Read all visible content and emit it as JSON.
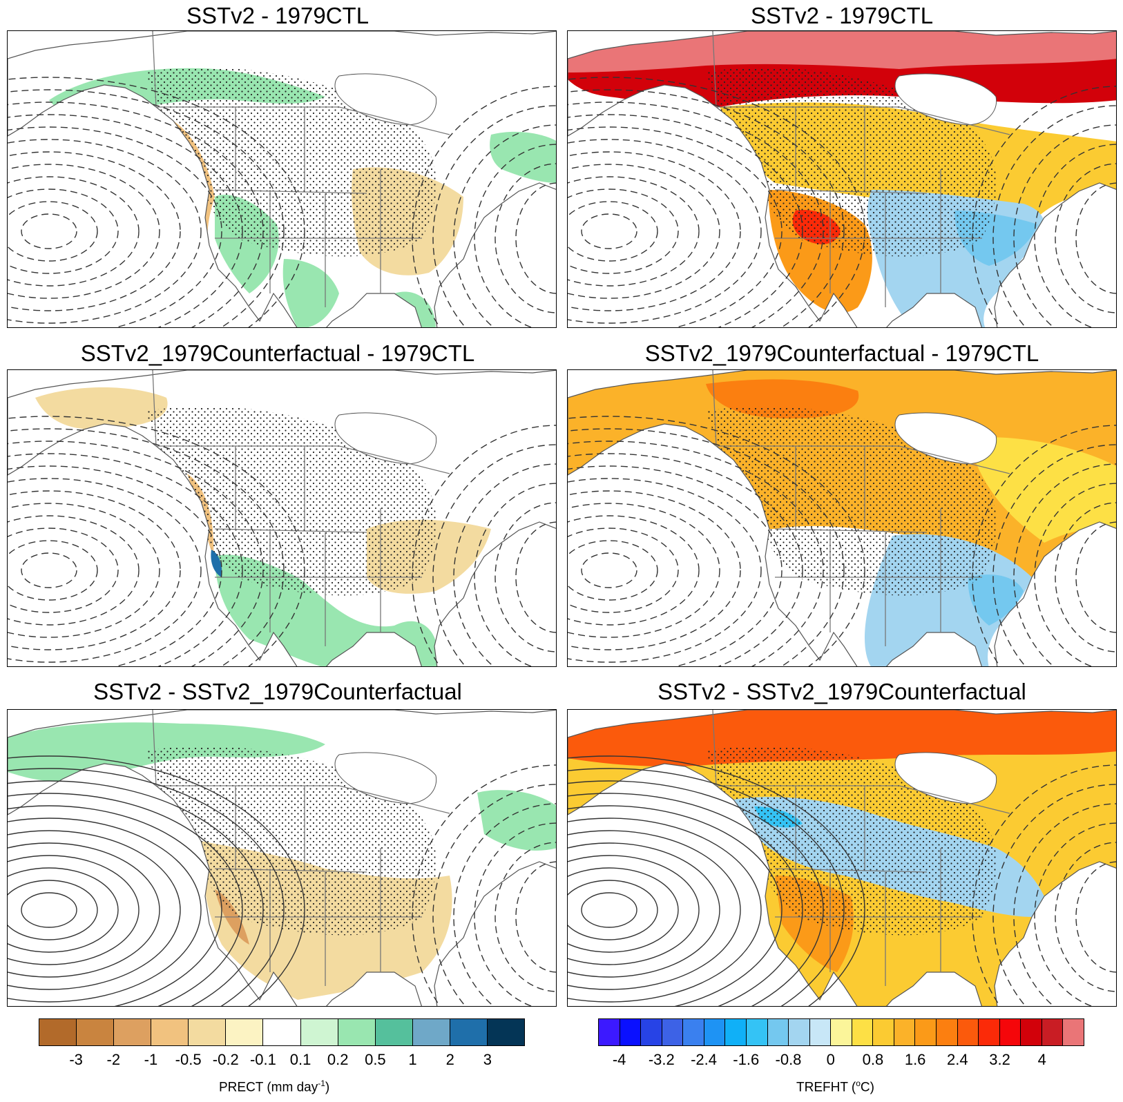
{
  "panels": {
    "p11": {
      "title": "SSTv2 - 1979CTL"
    },
    "p12": {
      "title": "SSTv2 - 1979CTL"
    },
    "p21": {
      "title": "SSTv2_1979Counterfactual - 1979CTL"
    },
    "p22": {
      "title": "SSTv2_1979Counterfactual - 1979CTL"
    },
    "p31": {
      "title": "SSTv2 - SSTv2_1979Counterfactual"
    },
    "p32": {
      "title": "SSTv2 - SSTv2_1979Counterfactual"
    }
  },
  "colorbars": {
    "precip": {
      "label_main": "PRECT (mm day",
      "label_sup": "-1",
      "label_end": ")",
      "colors": [
        "#b26a2a",
        "#c9843f",
        "#dda060",
        "#f1c27f",
        "#f3dba0",
        "#fcf3c3",
        "#ffffff",
        "#cff5d2",
        "#99e6b0",
        "#55c09c",
        "#6fa8c8",
        "#1f6faa",
        "#043556"
      ],
      "ticks": [
        "-3",
        "-2",
        "-1",
        "-0.5",
        "-0.2",
        "-0.1",
        "0.1",
        "0.2",
        "0.5",
        "1",
        "2",
        "3"
      ]
    },
    "temp": {
      "label_main": "TREFHT (",
      "label_sup": "o",
      "label_end": "C)",
      "colors": [
        "#3c19ff",
        "#0a10ff",
        "#2743e6",
        "#3d62e6",
        "#3a80ef",
        "#1e93f4",
        "#10b0f7",
        "#34c3f5",
        "#74c8ef",
        "#a3d5f0",
        "#c8e7f7",
        "#fbf59a",
        "#fde045",
        "#fbcb32",
        "#fbb229",
        "#fb9a18",
        "#fc7f10",
        "#fb5a0c",
        "#fb2a08",
        "#f5060a",
        "#d2010a",
        "#c91d24",
        "#ea7577"
      ],
      "ticks": [
        "-4",
        "-3.2",
        "-2.4",
        "-1.6",
        "-0.8",
        "0",
        "0.8",
        "1.6",
        "2.4",
        "3.2",
        "4"
      ]
    }
  }
}
